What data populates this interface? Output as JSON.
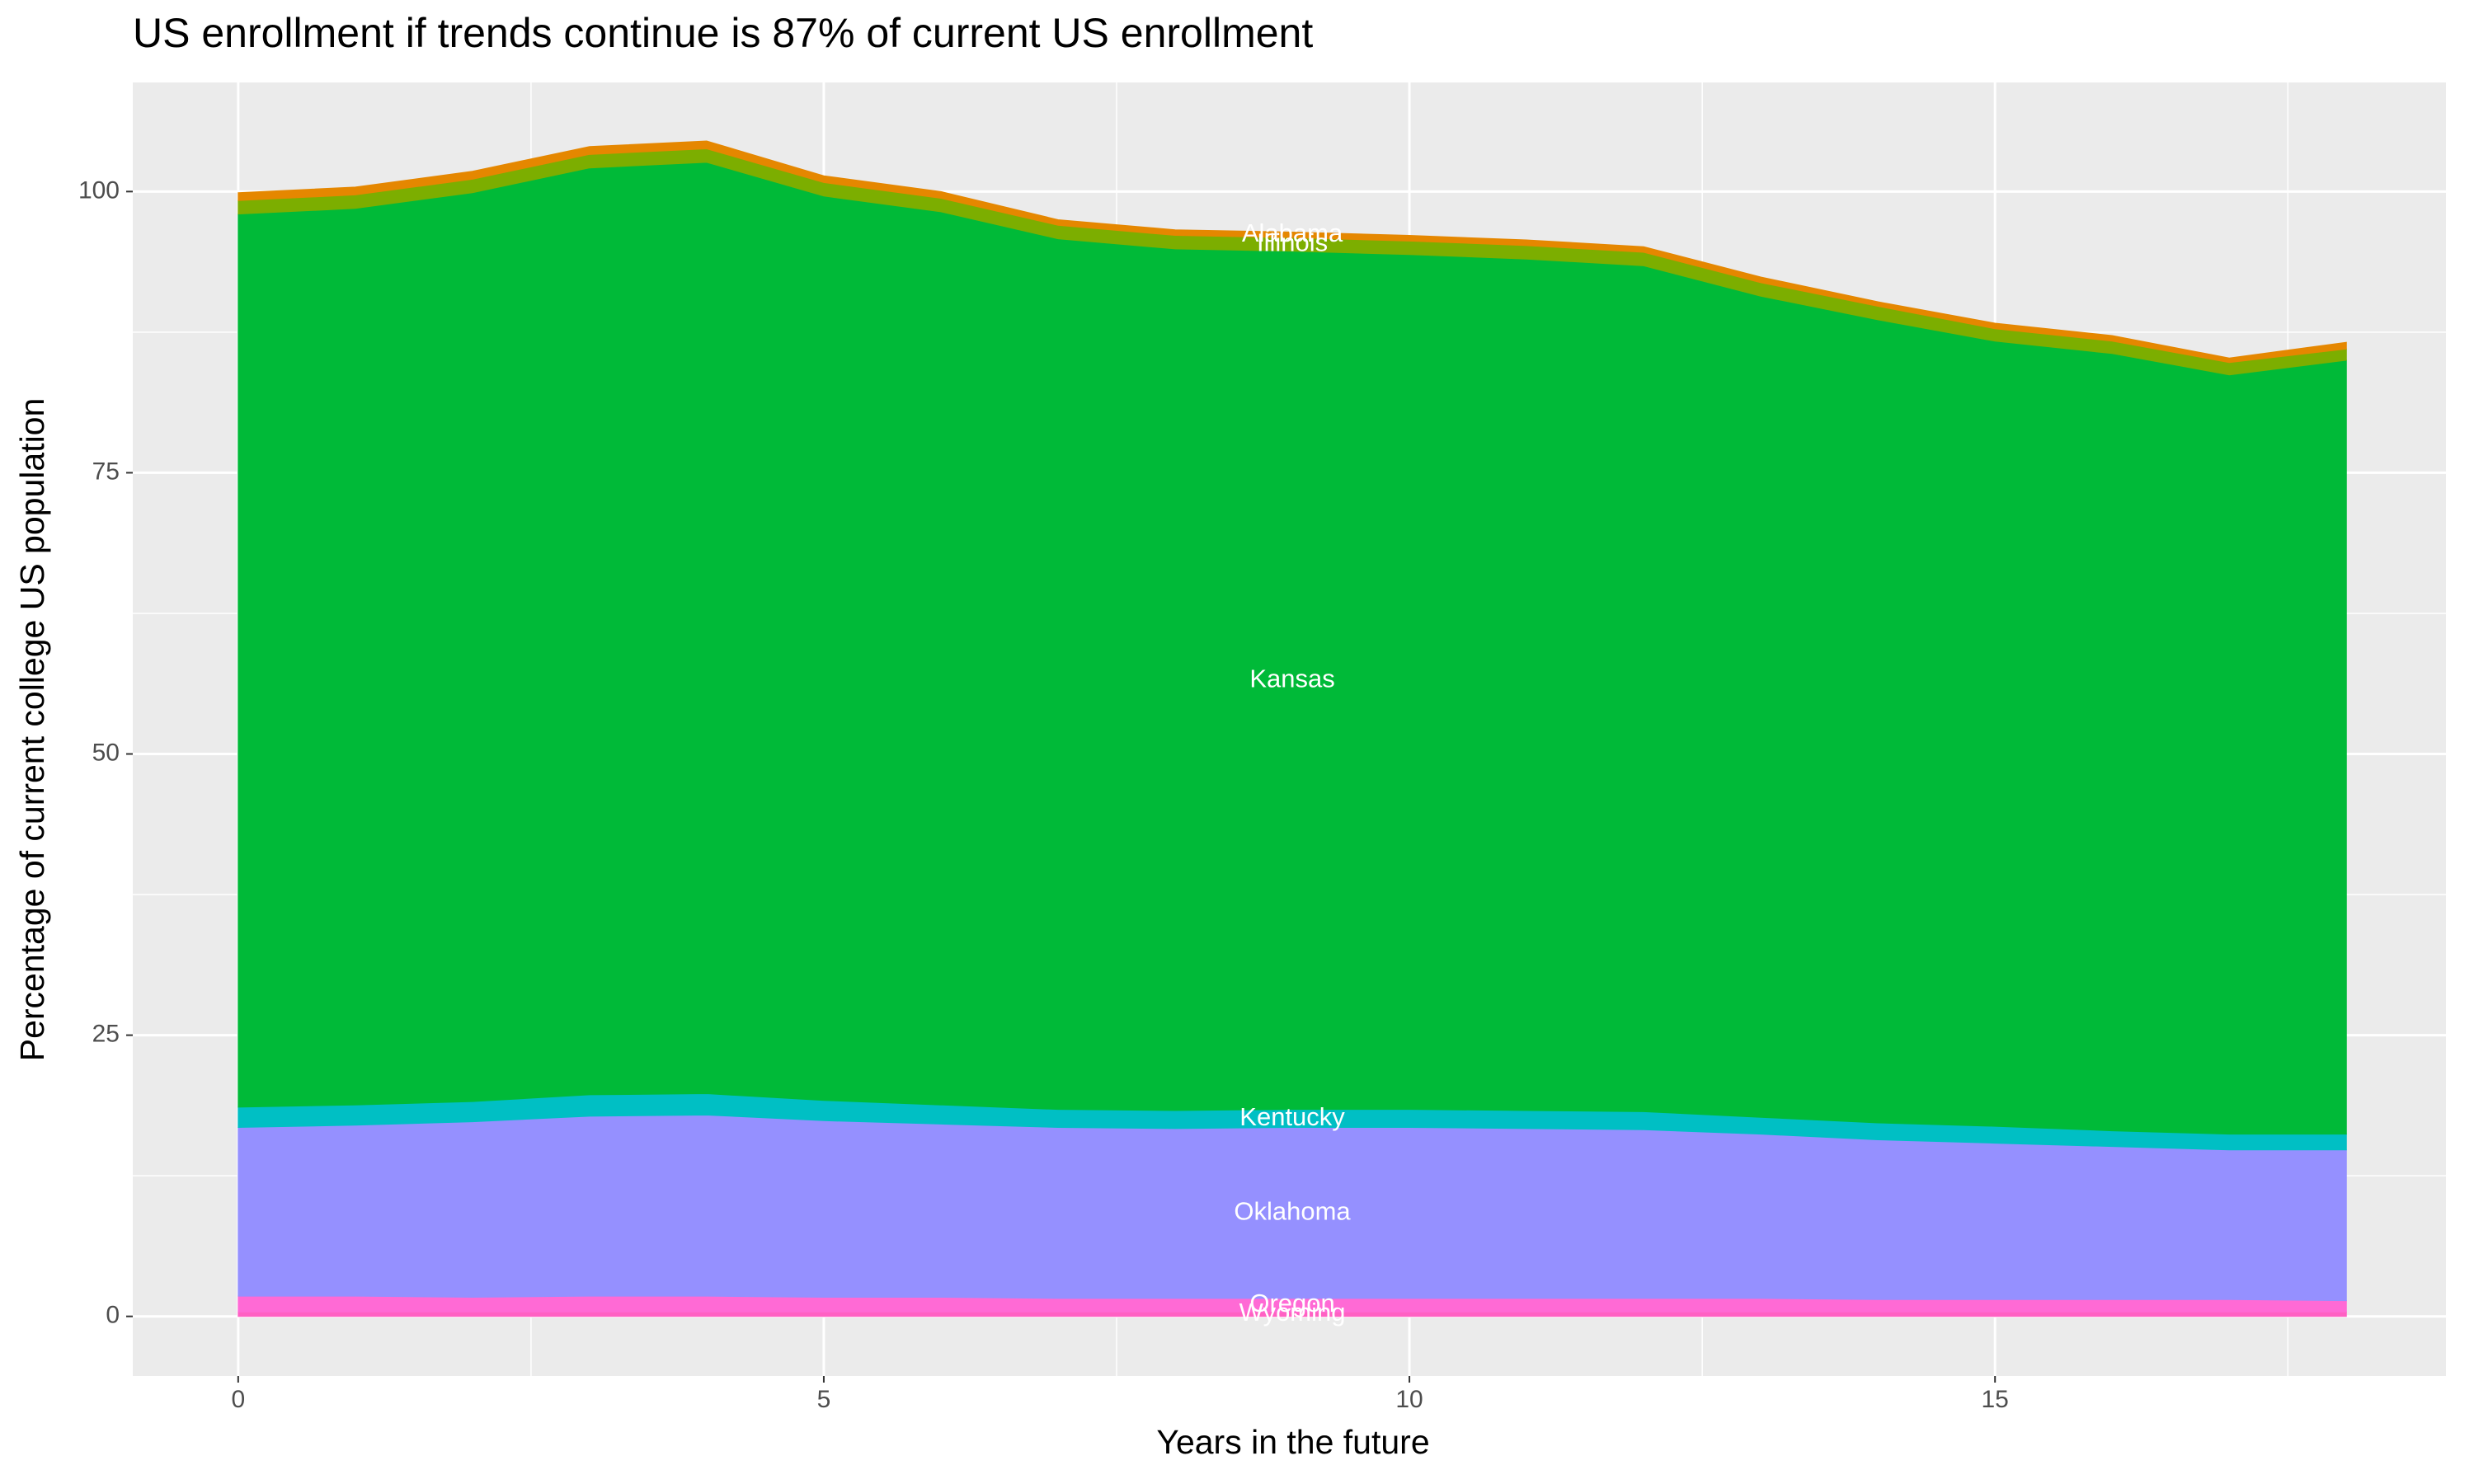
{
  "chart_data": {
    "type": "stacked_area",
    "title": "US enrollment if trends continue is 87% of current US enrollment",
    "xlabel": "Years in the future",
    "ylabel": "Percentage of current college US population",
    "x": [
      0,
      1,
      2,
      3,
      4,
      5,
      6,
      7,
      8,
      9,
      10,
      11,
      12,
      13,
      14,
      15,
      16,
      17,
      18
    ],
    "series": [
      {
        "name": "Wyoming",
        "color": "#ff61c3",
        "values": [
          0.4,
          0.4,
          0.4,
          0.4,
          0.4,
          0.4,
          0.4,
          0.4,
          0.4,
          0.4,
          0.4,
          0.4,
          0.4,
          0.4,
          0.4,
          0.4,
          0.4,
          0.4,
          0.4
        ]
      },
      {
        "name": "Oregon",
        "color": "#ff6ad5",
        "values": [
          1.4,
          1.4,
          1.3,
          1.4,
          1.4,
          1.3,
          1.3,
          1.2,
          1.2,
          1.2,
          1.2,
          1.2,
          1.2,
          1.2,
          1.1,
          1.1,
          1.1,
          1.1,
          1.0
        ]
      },
      {
        "name": "Oklahoma",
        "color": "#9590ff",
        "values": [
          15.0,
          15.2,
          15.6,
          16.0,
          16.1,
          15.7,
          15.4,
          15.2,
          15.1,
          15.2,
          15.2,
          15.1,
          15.0,
          14.6,
          14.2,
          13.9,
          13.6,
          13.3,
          13.4
        ]
      },
      {
        "name": "Kentucky",
        "color": "#00bfc4",
        "values": [
          1.8,
          1.8,
          1.8,
          1.9,
          1.9,
          1.8,
          1.7,
          1.6,
          1.6,
          1.6,
          1.6,
          1.6,
          1.6,
          1.5,
          1.5,
          1.5,
          1.4,
          1.4,
          1.4
        ]
      },
      {
        "name": "Kansas",
        "color": "#00ba38",
        "values": [
          79.4,
          79.7,
          80.8,
          82.4,
          82.8,
          80.4,
          79.4,
          77.4,
          76.6,
          76.3,
          76.0,
          75.7,
          75.2,
          73.0,
          71.4,
          69.8,
          69.1,
          67.5,
          68.8
        ]
      },
      {
        "name": "Illinois",
        "color": "#7cae00",
        "values": [
          1.2,
          1.2,
          1.2,
          1.2,
          1.2,
          1.2,
          1.2,
          1.2,
          1.2,
          1.2,
          1.2,
          1.2,
          1.2,
          1.2,
          1.2,
          1.1,
          1.1,
          1.1,
          1.0
        ]
      },
      {
        "name": "Alabama",
        "color": "#e58700",
        "values": [
          0.7,
          0.7,
          0.7,
          0.7,
          0.7,
          0.6,
          0.6,
          0.5,
          0.5,
          0.5,
          0.5,
          0.5,
          0.5,
          0.5,
          0.4,
          0.5,
          0.5,
          0.4,
          0.6
        ]
      }
    ],
    "label_x": 9,
    "xlim": [
      -0.9,
      18.85
    ],
    "xticks": [
      0,
      5,
      10,
      15
    ],
    "ylim": [
      -5.3,
      109.7
    ],
    "yticks": [
      0,
      25,
      50,
      75,
      100
    ],
    "grid": true
  }
}
